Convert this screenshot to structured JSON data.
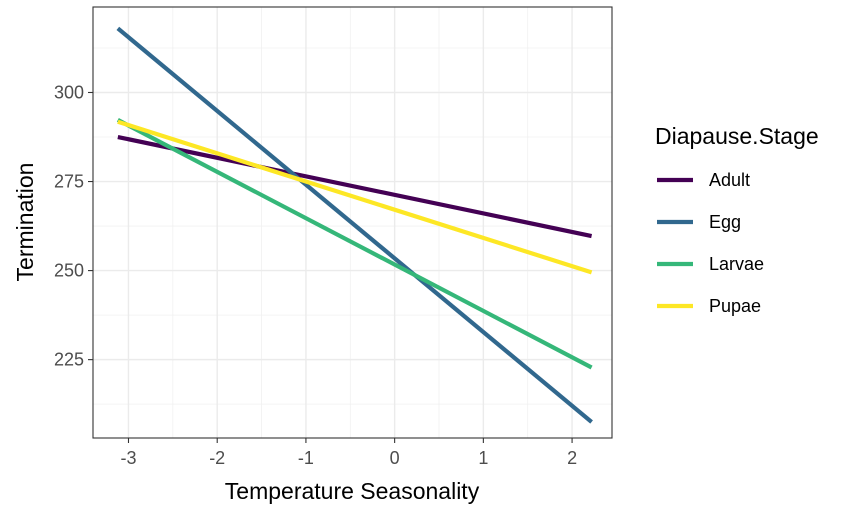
{
  "chart_data": {
    "type": "line",
    "xlabel": "Temperature Seasonality",
    "ylabel": "Termination",
    "xlim": [
      -3.4,
      2.45
    ],
    "ylim": [
      203,
      324
    ],
    "x_ticks": [
      -3,
      -2,
      -1,
      0,
      1,
      2
    ],
    "y_ticks": [
      225,
      250,
      275,
      300
    ],
    "grid": true,
    "legend_title": "Diapause.Stage",
    "legend_position": "right",
    "series": [
      {
        "name": "Adult",
        "color": "#440154",
        "x": [
          -3.12,
          2.22
        ],
        "y": [
          287.5,
          259.7
        ]
      },
      {
        "name": "Egg",
        "color": "#31688E",
        "x": [
          -3.12,
          2.22
        ],
        "y": [
          318.0,
          207.5
        ]
      },
      {
        "name": "Larvae",
        "color": "#35B779",
        "x": [
          -3.12,
          2.22
        ],
        "y": [
          292.3,
          222.8
        ]
      },
      {
        "name": "Pupae",
        "color": "#FDE725",
        "x": [
          -3.12,
          2.22
        ],
        "y": [
          291.8,
          249.5
        ]
      }
    ]
  }
}
